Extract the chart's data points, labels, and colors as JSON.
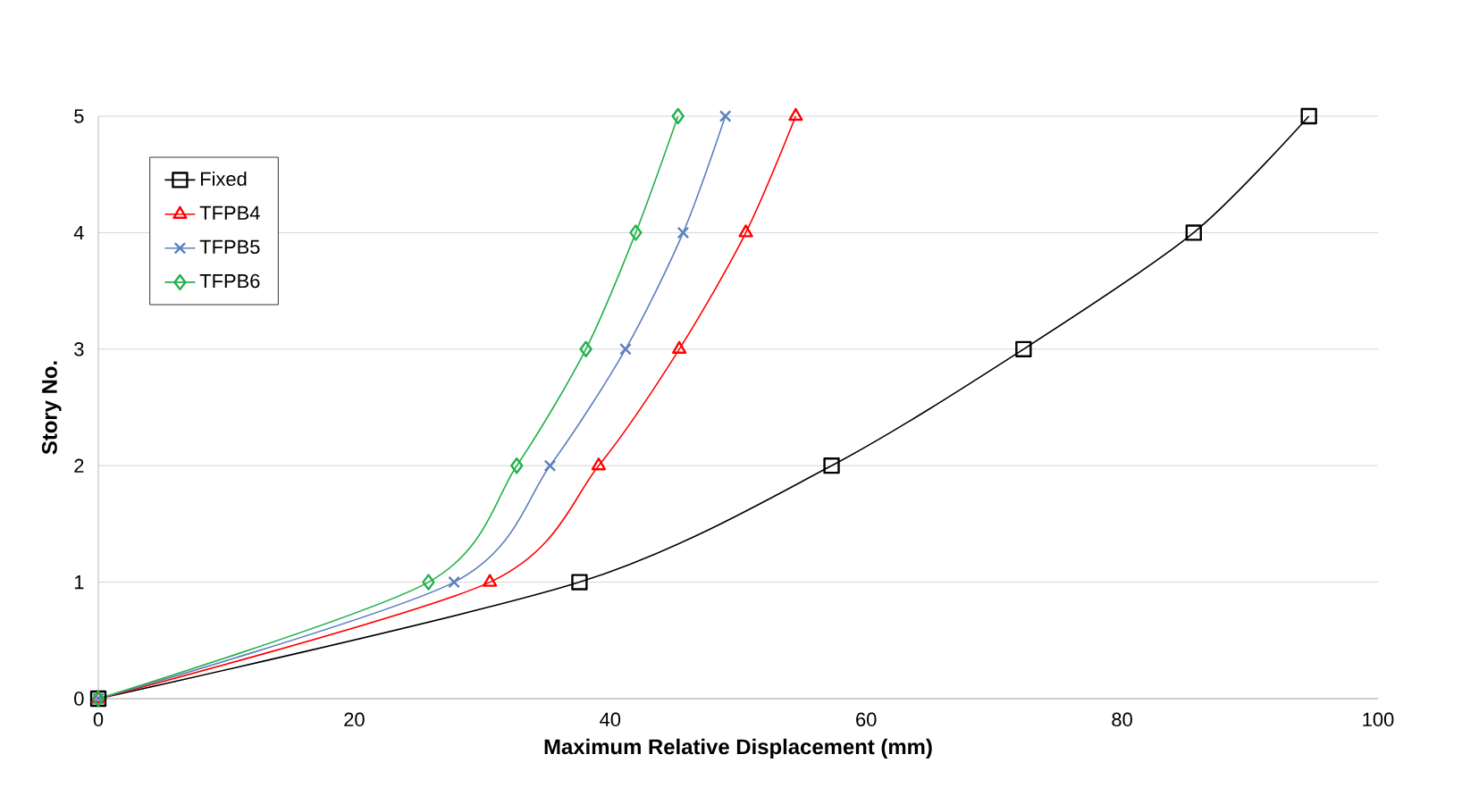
{
  "chart_data": {
    "type": "line",
    "xlabel": "Maximum Relative Displacement (mm)",
    "ylabel": "Story No.",
    "xlim": [
      0,
      100
    ],
    "ylim": [
      0,
      5
    ],
    "xticks": [
      0,
      20,
      40,
      60,
      80,
      100
    ],
    "yticks": [
      0,
      1,
      2,
      3,
      4,
      5
    ],
    "grid": "y",
    "legend": "top left",
    "series": [
      {
        "name": "Fixed",
        "color": "#000000",
        "marker": "square",
        "x": [
          0,
          37.6,
          57.3,
          72.3,
          85.6,
          94.6
        ],
        "values": [
          0,
          1,
          2,
          3,
          4,
          5
        ]
      },
      {
        "name": "TFPB4",
        "color": "#ff0000",
        "marker": "triangle",
        "x": [
          0,
          30.6,
          39.1,
          45.4,
          50.6,
          54.5
        ],
        "values": [
          0,
          1,
          2,
          3,
          4,
          5
        ]
      },
      {
        "name": "TFPB5",
        "color": "#5b7fbf",
        "marker": "cross",
        "x": [
          0,
          27.8,
          35.3,
          41.2,
          45.7,
          49.0
        ],
        "values": [
          0,
          1,
          2,
          3,
          4,
          5
        ]
      },
      {
        "name": "TFPB6",
        "color": "#22b14c",
        "marker": "diamond",
        "x": [
          0,
          25.8,
          32.7,
          38.1,
          42.0,
          45.3
        ],
        "values": [
          0,
          1,
          2,
          3,
          4,
          5
        ]
      }
    ]
  }
}
